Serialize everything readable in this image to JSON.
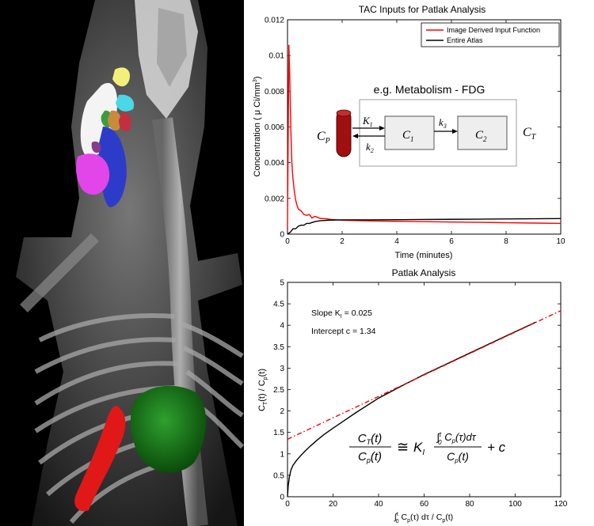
{
  "chart_data": [
    {
      "type": "line",
      "title": "TAC Inputs for Patlak Analysis",
      "xlabel": "Time (minutes)",
      "ylabel_prefix": "Concentration ( ",
      "ylabel_mu": "μ",
      "ylabel_mid": " Ci/mm",
      "ylabel_sup": "3",
      "ylabel_suffix": ")",
      "xlim": [
        0,
        10
      ],
      "ylim": [
        0,
        0.012
      ],
      "xticks": [
        0,
        2,
        4,
        6,
        8,
        10
      ],
      "yticks": [
        0,
        0.002,
        0.004,
        0.006,
        0.008,
        0.01,
        0.012
      ],
      "ytick_labels": [
        "0",
        "0.002",
        "0.004",
        "0.006",
        "0.008",
        "0.01",
        "0.012"
      ],
      "legend_position": "top-right",
      "series": [
        {
          "name": "Image Derived Input Function",
          "color": "#ff0000",
          "x": [
            0,
            0.05,
            0.08,
            0.12,
            0.16,
            0.2,
            0.25,
            0.3,
            0.35,
            0.4,
            0.5,
            0.6,
            0.7,
            0.8,
            0.9,
            1.0,
            1.2,
            1.4,
            1.6,
            1.8,
            2.0,
            3.0,
            4.0,
            5.0,
            6.0,
            7.0,
            8.0,
            9.0,
            10.0
          ],
          "y": [
            0.0003,
            0.0106,
            0.009,
            0.006,
            0.004,
            0.0031,
            0.0024,
            0.0019,
            0.0016,
            0.0014,
            0.0013,
            0.0011,
            0.00105,
            0.0011,
            0.0009,
            0.001,
            0.00088,
            0.00086,
            0.00082,
            0.0008,
            0.00078,
            0.00074,
            0.00072,
            0.0007,
            0.00068,
            0.00066,
            0.00064,
            0.00062,
            0.0006
          ]
        },
        {
          "name": "Entire Atlas",
          "color": "#000000",
          "x": [
            0,
            0.1,
            0.2,
            0.3,
            0.4,
            0.5,
            0.6,
            0.7,
            0.8,
            0.9,
            1.0,
            1.2,
            1.5,
            2.0,
            3.0,
            4.0,
            5.0,
            6.0,
            7.0,
            8.0,
            9.0,
            10.0
          ],
          "y": [
            0,
            0.0001,
            0.0003,
            0.0003,
            0.00045,
            0.0005,
            0.0005,
            0.0006,
            0.0006,
            0.00065,
            0.0007,
            0.00075,
            0.00078,
            0.0008,
            0.0008,
            0.00081,
            0.00082,
            0.00083,
            0.00084,
            0.00085,
            0.00086,
            0.00087
          ]
        }
      ],
      "inset": {
        "title": "e.g. Metabolism - FDG",
        "cp": "C",
        "cp_sub": "P",
        "c1": "C",
        "c1_sub": "1",
        "c2": "C",
        "c2_sub": "2",
        "ct": "C",
        "ct_sub": "T",
        "k1": "K",
        "k1_sub": "1",
        "k2": "k",
        "k2_sub": "2",
        "k3": "k",
        "k3_sub": "3",
        "vessel_color": "#a01010"
      }
    },
    {
      "type": "line",
      "title": "Patlak Analysis",
      "xlim": [
        0,
        120
      ],
      "ylim": [
        0,
        5
      ],
      "xticks": [
        0,
        20,
        40,
        60,
        80,
        100,
        120
      ],
      "yticks": [
        0,
        0.5,
        1,
        1.5,
        2,
        2.5,
        3,
        3.5,
        4,
        4.5,
        5
      ],
      "xlabel_parts": [
        "∫",
        "t",
        "0",
        " C",
        "p",
        "(τ) dτ / C",
        "p",
        "(t)"
      ],
      "ylabel_parts": [
        "C",
        "T",
        "(t) / C",
        "p",
        "(t)"
      ],
      "annotations": {
        "slope_prefix": "Slope K",
        "slope_sub": "I",
        "slope_value": " = 0.025",
        "intercept": "Intercept c = 1.34"
      },
      "formula": {
        "lhs_num": "C",
        "lhs_num_sub": "T",
        "lhs_num_arg": "(t)",
        "lhs_den": "C",
        "lhs_den_sub": "p",
        "lhs_den_arg": "(t)",
        "approx": "≅",
        "k": "K",
        "k_sub": "I",
        "int": "∫",
        "int_up": "t",
        "int_lo": "0",
        "rhs_num_rest": " C",
        "rhs_num_sub": "p",
        "rhs_num_tail": "(τ)dτ",
        "rhs_den": "C",
        "rhs_den_sub": "p",
        "rhs_den_arg": "(t)",
        "plus": "+ c"
      },
      "series": [
        {
          "color": "#000000",
          "style": "solid",
          "x": [
            0,
            0.3,
            0.8,
            1.5,
            2.5,
            4,
            6,
            8,
            10,
            13,
            16,
            20,
            25,
            30,
            35,
            40,
            50,
            60,
            70,
            80,
            90,
            100,
            109
          ],
          "y": [
            0,
            0.25,
            0.45,
            0.62,
            0.74,
            0.85,
            0.97,
            1.08,
            1.18,
            1.32,
            1.45,
            1.6,
            1.78,
            1.96,
            2.13,
            2.3,
            2.58,
            2.85,
            3.1,
            3.35,
            3.6,
            3.85,
            4.07
          ]
        },
        {
          "color": "#ff0000",
          "style": "dashdot",
          "x": [
            0,
            120
          ],
          "y": [
            1.34,
            4.34
          ]
        }
      ]
    }
  ],
  "image": {
    "description_name": "micro-ct-volume-rendering"
  }
}
